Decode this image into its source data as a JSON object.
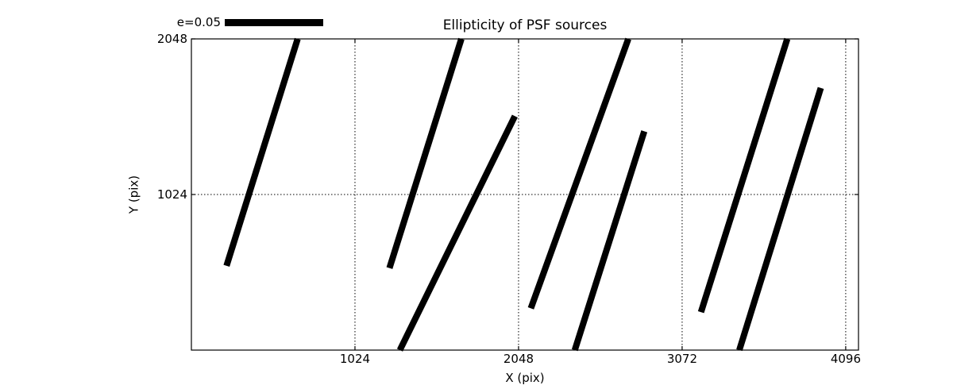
{
  "figure": {
    "window_background": "#ffffff",
    "foreground": "#000000"
  },
  "chart_data": {
    "type": "line",
    "mark": "whisker-segments",
    "title": "Ellipticity of PSF sources",
    "xlabel": "X (pix)",
    "ylabel": "Y (pix)",
    "xlim": [
      0,
      4176
    ],
    "ylim": [
      0,
      2048
    ],
    "xticks": [
      1024,
      2048,
      3072,
      4096
    ],
    "yticks": [
      1024,
      2048
    ],
    "grid": "dotted",
    "legend": {
      "label": "e=0.05",
      "position": "top-left-outside"
    },
    "line_color": "#000000",
    "line_width": 8,
    "segments": [
      [
        220,
        555,
        665,
        2048
      ],
      [
        1240,
        540,
        1690,
        2048
      ],
      [
        1305,
        0,
        2025,
        1540
      ],
      [
        2125,
        275,
        2735,
        2048
      ],
      [
        2400,
        0,
        2835,
        1440
      ],
      [
        3190,
        250,
        3730,
        2048
      ],
      [
        3430,
        0,
        3940,
        1725
      ]
    ]
  }
}
